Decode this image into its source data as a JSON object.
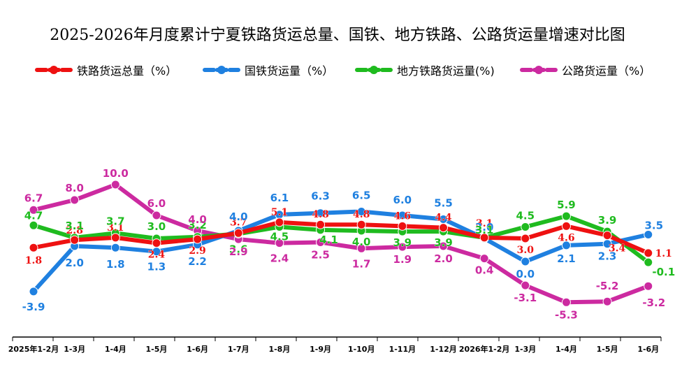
{
  "chart_data": {
    "type": "line",
    "title": "2025-2026年月度累计宁夏铁路货运总量、国铁、地方铁路、公路货运量增速对比图",
    "categories": [
      "2025年1-2月",
      "1-3月",
      "1-4月",
      "1-5月",
      "1-6月",
      "1-7月",
      "1-8月",
      "1-9月",
      "1-10月",
      "1-11月",
      "1-12月",
      "2026年1-2月",
      "1-3月",
      "1-4月",
      "1-5月",
      "1-6月"
    ],
    "series": [
      {
        "name": "铁路货运总量（%）",
        "color": "#ee1111",
        "values": [
          1.8,
          2.8,
          3.1,
          2.4,
          2.9,
          3.7,
          5.1,
          4.8,
          4.8,
          4.6,
          4.4,
          3.1,
          3.0,
          4.6,
          3.4,
          1.1
        ]
      },
      {
        "name": "国铁货运量（%）",
        "color": "#1f80e0",
        "values": [
          -3.9,
          2.0,
          1.8,
          1.3,
          2.2,
          4.0,
          6.1,
          6.3,
          6.5,
          6.0,
          5.5,
          3.0,
          0.0,
          2.1,
          2.3,
          3.5
        ]
      },
      {
        "name": "地方铁路货运量(%)",
        "color": "#1fbb1f",
        "values": [
          4.7,
          3.1,
          3.7,
          3.0,
          3.2,
          3.6,
          4.5,
          4.1,
          4.0,
          3.9,
          3.9,
          3.1,
          4.5,
          5.9,
          3.9,
          -0.1
        ]
      },
      {
        "name": "公路货运量（%）",
        "color": "#cc2aa0",
        "values": [
          6.7,
          8.0,
          10.0,
          6.0,
          4.0,
          2.9,
          2.4,
          2.5,
          1.7,
          1.9,
          2.0,
          0.4,
          -3.1,
          -5.3,
          -5.2,
          -3.2
        ]
      }
    ],
    "xlabel": "",
    "ylabel": "",
    "legend_position": "top",
    "grid": false
  }
}
